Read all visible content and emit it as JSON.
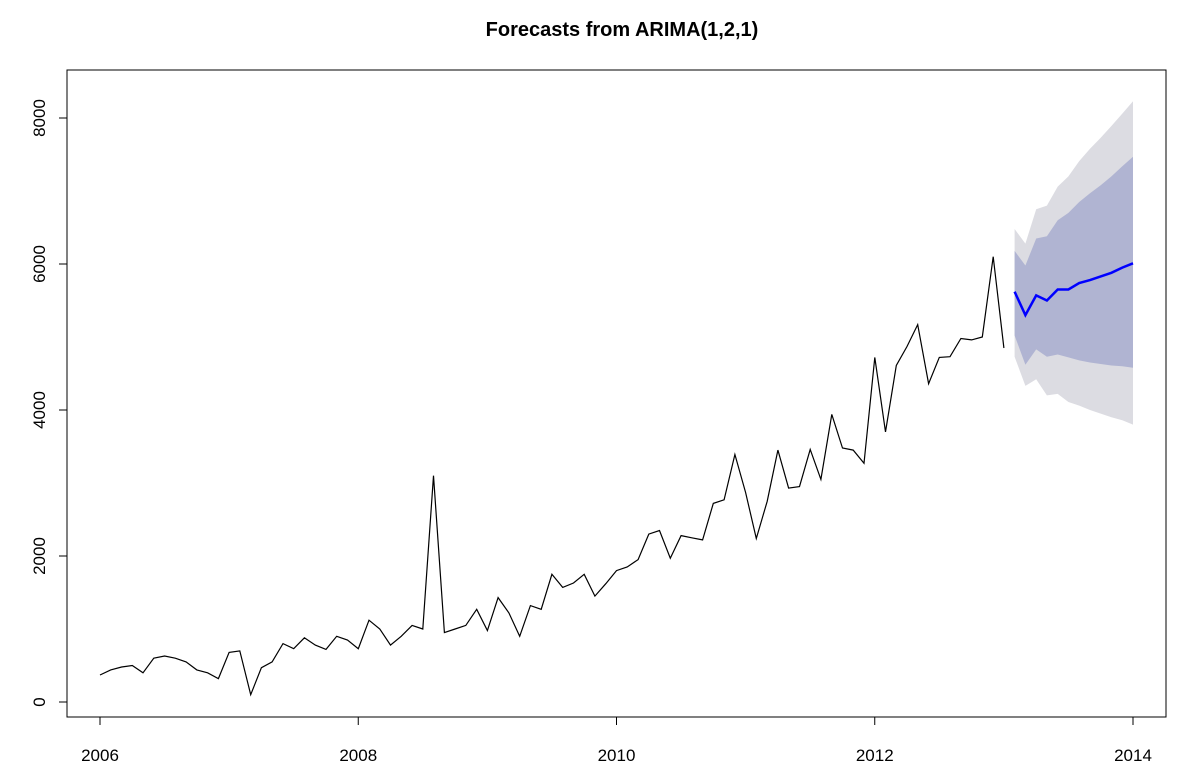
{
  "chart_data": {
    "type": "line",
    "title": "Forecasts from ARIMA(1,2,1)",
    "xlabel": "",
    "ylabel": "",
    "xlim": [
      2006,
      2014
    ],
    "ylim": [
      0,
      8400
    ],
    "x_ticks": [
      2006,
      2008,
      2010,
      2012,
      2014
    ],
    "x_tick_labels": [
      "2006",
      "2008",
      "2010",
      "2012",
      "2014"
    ],
    "y_ticks": [
      0,
      2000,
      4000,
      6000,
      8000
    ],
    "y_tick_labels": [
      "0",
      "2000",
      "4000",
      "6000",
      "8000"
    ],
    "grid": false,
    "legend": "none",
    "colors": {
      "observed": "#000000",
      "forecast": "#0000ff",
      "band80": "#b0b4d2",
      "band95": "#dcdce2"
    },
    "observed": {
      "x": [
        2006.0,
        2006.083,
        2006.167,
        2006.25,
        2006.333,
        2006.417,
        2006.5,
        2006.583,
        2006.667,
        2006.75,
        2006.833,
        2006.917,
        2007.0,
        2007.083,
        2007.167,
        2007.25,
        2007.333,
        2007.417,
        2007.5,
        2007.583,
        2007.667,
        2007.75,
        2007.833,
        2007.917,
        2008.0,
        2008.083,
        2008.167,
        2008.25,
        2008.333,
        2008.417,
        2008.5,
        2008.583,
        2008.667,
        2008.75,
        2008.833,
        2008.917,
        2009.0,
        2009.083,
        2009.167,
        2009.25,
        2009.333,
        2009.417,
        2009.5,
        2009.583,
        2009.667,
        2009.75,
        2009.833,
        2009.917,
        2010.0,
        2010.083,
        2010.167,
        2010.25,
        2010.333,
        2010.417,
        2010.5,
        2010.583,
        2010.667,
        2010.75,
        2010.833,
        2010.917,
        2011.0,
        2011.083,
        2011.167,
        2011.25,
        2011.333,
        2011.417,
        2011.5,
        2011.583,
        2011.667,
        2011.75,
        2011.833,
        2011.917,
        2012.0,
        2012.083,
        2012.167,
        2012.25,
        2012.333,
        2012.417,
        2012.5,
        2012.583,
        2012.667,
        2012.75,
        2012.833,
        2012.917,
        2013.0
      ],
      "y": [
        370,
        440,
        480,
        500,
        400,
        600,
        630,
        600,
        550,
        440,
        400,
        320,
        680,
        700,
        100,
        470,
        550,
        800,
        730,
        880,
        780,
        720,
        900,
        850,
        730,
        1120,
        1000,
        780,
        900,
        1050,
        1000,
        3100,
        950,
        1000,
        1050,
        1270,
        980,
        1430,
        1220,
        900,
        1320,
        1270,
        1750,
        1570,
        1630,
        1750,
        1450,
        1620,
        1800,
        1850,
        1950,
        2300,
        2350,
        1970,
        2280,
        2250,
        2220,
        2720,
        2770,
        3390,
        2870,
        2240,
        2750,
        3450,
        2930,
        2950,
        3460,
        3050,
        3940,
        3480,
        3450,
        3270,
        4720,
        3700,
        4610,
        4870,
        5170,
        4360,
        4720,
        4730,
        4980,
        4960,
        5000,
        6100,
        4850
      ]
    },
    "forecast": {
      "x": [
        2013.083,
        2013.167,
        2013.25,
        2013.333,
        2013.417,
        2013.5,
        2013.583,
        2013.667,
        2013.75,
        2013.833,
        2013.917,
        2014.0
      ],
      "mean": [
        5620,
        5300,
        5570,
        5500,
        5650,
        5650,
        5740,
        5780,
        5830,
        5880,
        5950,
        6010
      ],
      "lo80": [
        5020,
        4620,
        4830,
        4730,
        4760,
        4720,
        4680,
        4650,
        4630,
        4610,
        4600,
        4580
      ],
      "hi80": [
        6180,
        5980,
        6350,
        6380,
        6600,
        6700,
        6850,
        6970,
        7080,
        7200,
        7340,
        7470
      ],
      "lo95": [
        4730,
        4330,
        4420,
        4200,
        4220,
        4110,
        4060,
        4000,
        3950,
        3900,
        3860,
        3800
      ],
      "hi95": [
        6480,
        6280,
        6750,
        6800,
        7060,
        7200,
        7410,
        7580,
        7730,
        7890,
        8060,
        8230
      ]
    }
  }
}
